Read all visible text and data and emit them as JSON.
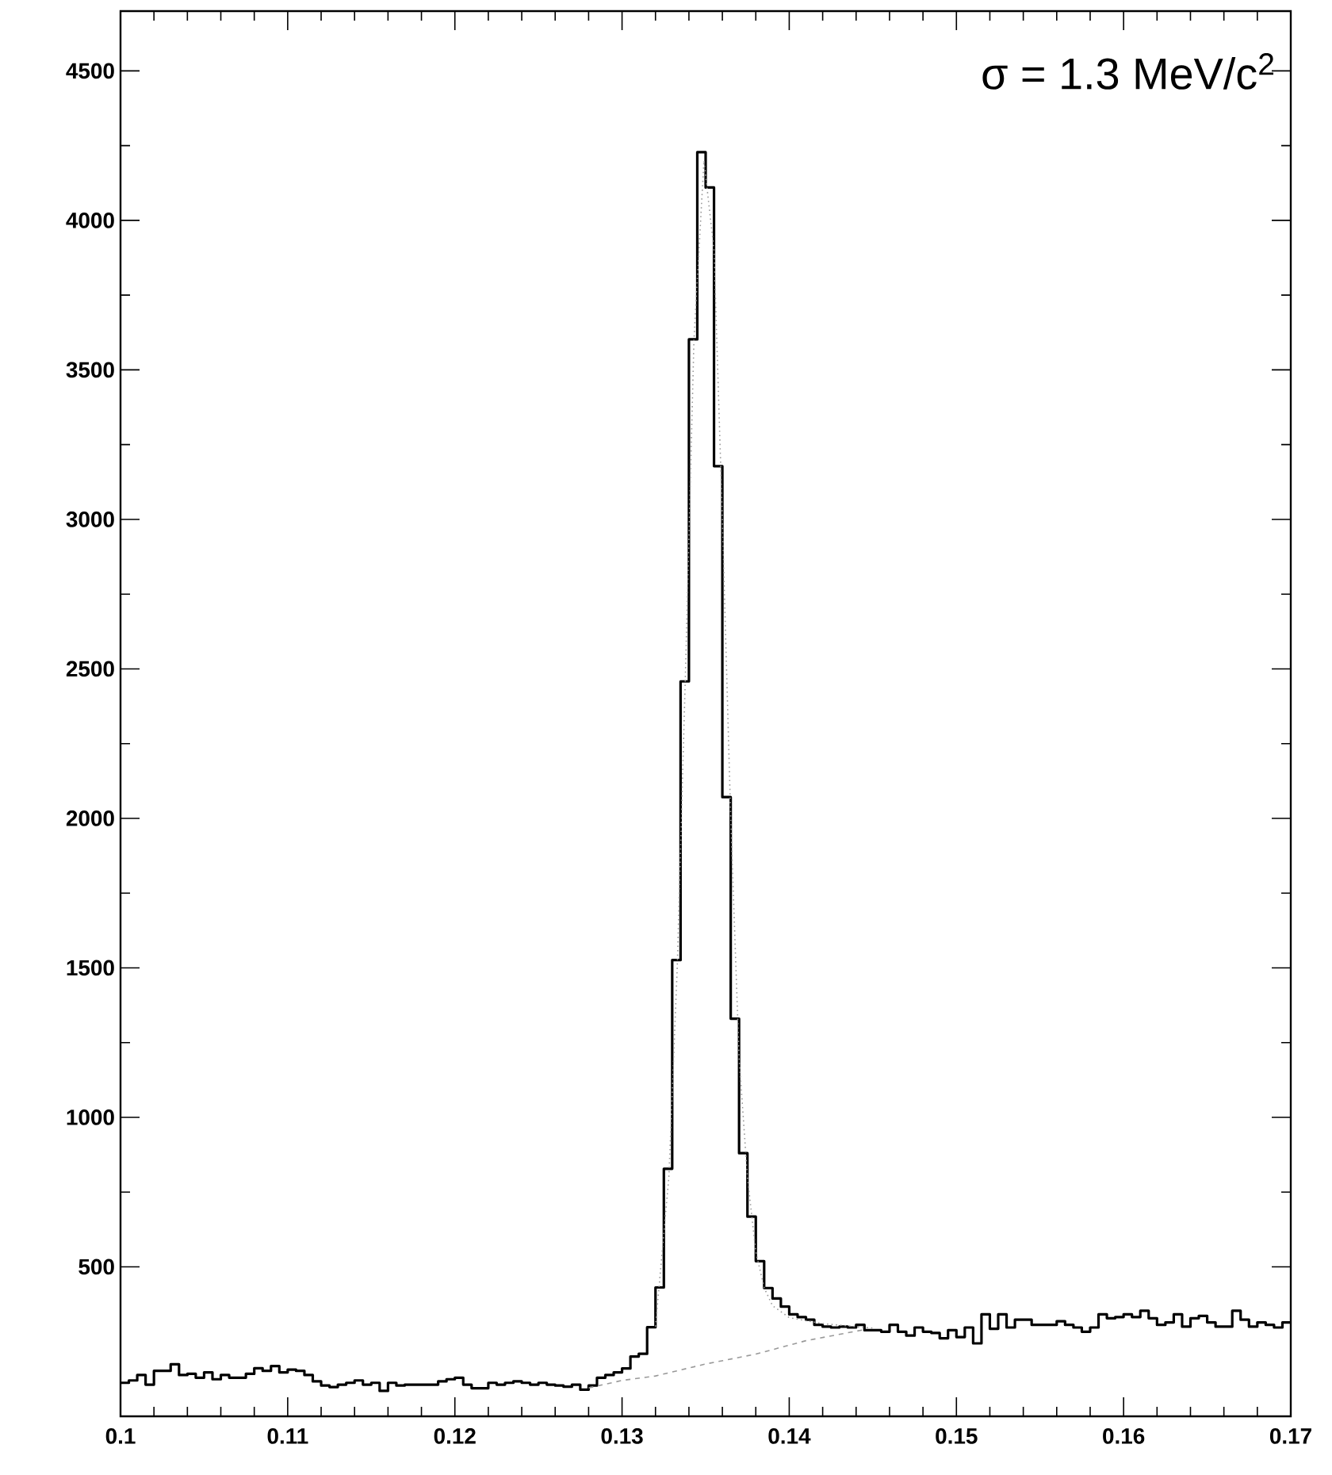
{
  "chart_data": {
    "type": "histogram",
    "annotations": [
      "σ = 1.3 MeV/c$^{2}$"
    ],
    "xlim": [
      0.1,
      0.17
    ],
    "xticks": [
      0.1,
      0.11,
      0.12,
      0.13,
      0.14,
      0.15,
      0.16,
      0.17
    ],
    "ylim": [
      0,
      4700
    ],
    "yticks": [
      500,
      1000,
      1500,
      2000,
      2500,
      3000,
      3500,
      4000,
      4500
    ],
    "series": [
      {
        "color": "#000000",
        "bins": [
          0.1,
          0.1005,
          0.101,
          0.1015,
          0.102,
          0.1025,
          0.103,
          0.1035,
          0.104,
          0.1045,
          0.105,
          0.1055,
          0.106,
          0.1065,
          0.107,
          0.1075,
          0.108,
          0.1085,
          0.109,
          0.1095,
          0.11,
          0.1105,
          0.111,
          0.1115,
          0.112,
          0.1125,
          0.113,
          0.1135,
          0.114,
          0.1145,
          0.115,
          0.1155,
          0.116,
          0.1165,
          0.117,
          0.1175,
          0.118,
          0.1185,
          0.119,
          0.1195,
          0.12,
          0.1205,
          0.121,
          0.1215,
          0.122,
          0.1225,
          0.123,
          0.1235,
          0.124,
          0.1245,
          0.125,
          0.1255,
          0.126,
          0.1265,
          0.127,
          0.1275,
          0.128,
          0.1285,
          0.129,
          0.1295,
          0.13,
          0.1305,
          0.131,
          0.1315,
          0.132,
          0.1325,
          0.133,
          0.1335,
          0.134,
          0.1345,
          0.135,
          0.1355,
          0.136,
          0.1365,
          0.137,
          0.1375,
          0.138,
          0.1385,
          0.139,
          0.1395,
          0.14,
          0.1405,
          0.141,
          0.1415,
          0.142,
          0.1425,
          0.143,
          0.1435,
          0.144,
          0.1445,
          0.145,
          0.1455,
          0.146,
          0.1465,
          0.147,
          0.1475,
          0.148,
          0.1485,
          0.149,
          0.1495,
          0.15,
          0.1505,
          0.151,
          0.1515,
          0.152,
          0.1525,
          0.153,
          0.1535,
          0.154,
          0.1545,
          0.155,
          0.1555,
          0.156,
          0.1565,
          0.157,
          0.1575,
          0.158,
          0.1585,
          0.159,
          0.1595,
          0.16,
          0.1605,
          0.161,
          0.1615,
          0.162,
          0.1625,
          0.163,
          0.1635,
          0.164,
          0.1645,
          0.165,
          0.1655,
          0.166,
          0.1665,
          0.167,
          0.1675,
          0.168,
          0.1685,
          0.169,
          0.1695,
          0.17
        ],
        "values": [
          112,
          120,
          138,
          106,
          152,
          152,
          174,
          138,
          142,
          129,
          147,
          124,
          138,
          129,
          129,
          142,
          161,
          152,
          168,
          147,
          156,
          152,
          138,
          117,
          103,
          98,
          106,
          112,
          120,
          106,
          112,
          85,
          112,
          103,
          106,
          106,
          106,
          106,
          117,
          124,
          129,
          106,
          94,
          94,
          112,
          106,
          112,
          117,
          112,
          106,
          112,
          106,
          103,
          99,
          106,
          89,
          103,
          129,
          138,
          147,
          160,
          200,
          209,
          298,
          431,
          828,
          1526,
          2458,
          3602,
          4228,
          4110,
          3178,
          2071,
          1330,
          880,
          668,
          519,
          429,
          394,
          367,
          341,
          332,
          323,
          306,
          300,
          297,
          300,
          297,
          306,
          288,
          288,
          283,
          306,
          283,
          270,
          297,
          283,
          279,
          261,
          288,
          265,
          297,
          244,
          341,
          293,
          341,
          297,
          323,
          323,
          306,
          306,
          306,
          318,
          306,
          297,
          283,
          297,
          341,
          328,
          332,
          341,
          332,
          353,
          328,
          306,
          314,
          341,
          300,
          328,
          336,
          314,
          300,
          300,
          353,
          323,
          300,
          314,
          306,
          297,
          314
        ]
      },
      {
        "type": "line",
        "color": "#999999",
        "line_style": "dotted",
        "x": [
          0.132,
          0.1328,
          0.1333,
          0.1338,
          0.1343,
          0.1349,
          0.1355,
          0.136,
          0.1365,
          0.137,
          0.1375,
          0.138,
          0.1385,
          0.139,
          0.14,
          0.142,
          0.145
        ],
        "values": [
          300,
          800,
          1500,
          2500,
          3600,
          4200,
          3900,
          3000,
          2000,
          1200,
          800,
          550,
          430,
          370,
          330,
          310,
          295
        ]
      },
      {
        "type": "line",
        "color": "#999999",
        "line_style": "dashed",
        "x": [
          0.128,
          0.13,
          0.132,
          0.135,
          0.138,
          0.141,
          0.1445
        ],
        "values": [
          95,
          120,
          135,
          175,
          208,
          253,
          290
        ]
      }
    ]
  }
}
